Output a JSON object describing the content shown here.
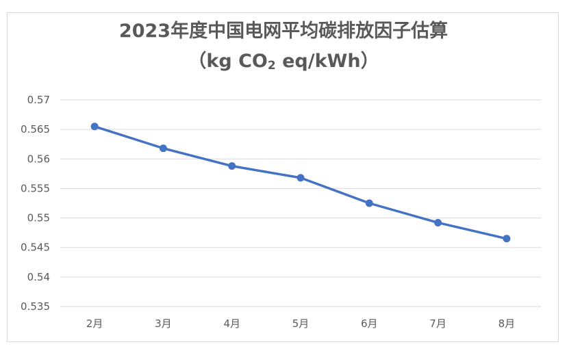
{
  "chart_data": {
    "type": "line",
    "title_line1": "2023年度中国电网平均碳排放因子估算",
    "title_line2_prefix": "（kg CO",
    "title_line2_sub": "2",
    "title_line2_suffix": " eq/kWh）",
    "categories": [
      "2月",
      "3月",
      "4月",
      "5月",
      "6月",
      "7月",
      "8月"
    ],
    "series": [
      {
        "values": [
          0.5655,
          0.5618,
          0.5588,
          0.5568,
          0.5525,
          0.5492,
          0.5465
        ]
      }
    ],
    "ylim": [
      0.535,
      0.57
    ],
    "yticks": [
      "0.57",
      "0.565",
      "0.56",
      "0.555",
      "0.55",
      "0.545",
      "0.54",
      "0.535"
    ],
    "grid": true,
    "legend": "none",
    "colors": {
      "line": "#4472c4",
      "grid": "#d9d9d9",
      "text": "#595959"
    }
  }
}
